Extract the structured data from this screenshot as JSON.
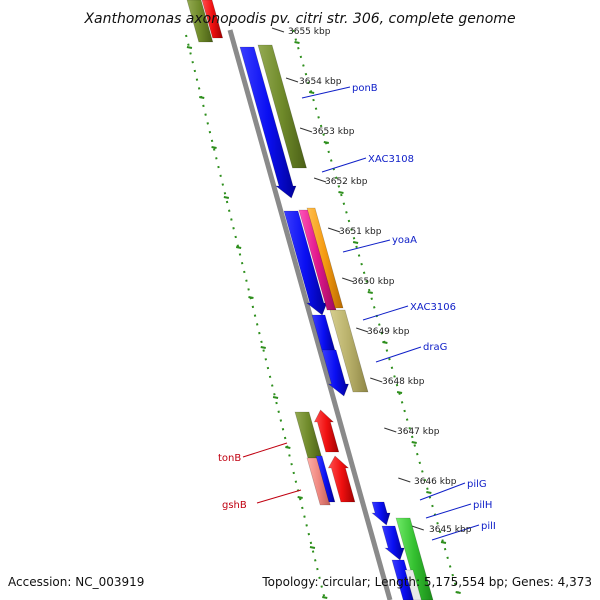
{
  "title": "Xanthomonas axonopodis pv. citri str. 306, complete genome",
  "footer": {
    "accession": "Accession: NC_003919",
    "summary": "Topology: circular; Length: 5,175,554 bp; Genes: 4,373"
  },
  "ticks": [
    "3655 kbp",
    "3654 kbp",
    "3653 kbp",
    "3652 kbp",
    "3651 kbp",
    "3650 kbp",
    "3649 kbp",
    "3648 kbp",
    "3647 kbp",
    "3646 kbp",
    "3645 kbp"
  ],
  "gene_labels_right": [
    "ponB",
    "XAC3108",
    "yoaA",
    "XAC3106",
    "draG",
    "pilG",
    "pilH",
    "pilI"
  ],
  "gene_labels_left": [
    "tonB",
    "gshB"
  ],
  "colors": {
    "forward_blue": "#0b10f0",
    "olive": "#6f8a2a",
    "khaki": "#b8b06a",
    "magenta": "#e0188c",
    "orange": "#f59a10",
    "red": "#f01010",
    "salmon": "#ef8880",
    "green": "#34c030",
    "backbone": "#8a8a8a",
    "dots": "#2e8f1d",
    "label_blue": "#1020c8",
    "label_red": "#c00010"
  }
}
